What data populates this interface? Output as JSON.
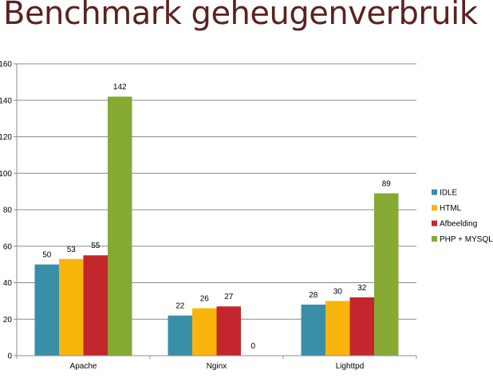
{
  "slide": {
    "title": "Benchmark geheugenverbruik"
  },
  "chart_data": {
    "type": "bar",
    "categories": [
      "Apache",
      "Nginx",
      "Lighttpd"
    ],
    "series": [
      {
        "name": "IDLE",
        "color": "#3a8fa8",
        "values": [
          50,
          22,
          28
        ]
      },
      {
        "name": "HTML",
        "color": "#f9b50c",
        "values": [
          53,
          26,
          30
        ]
      },
      {
        "name": "Afbeelding",
        "color": "#c3272d",
        "values": [
          55,
          27,
          32
        ]
      },
      {
        "name": "PHP + MYSQL",
        "color": "#86a934",
        "values": [
          142,
          0,
          89
        ]
      }
    ],
    "ylim": [
      0,
      160
    ],
    "yticks": [
      0,
      20,
      40,
      60,
      80,
      100,
      120,
      140,
      160
    ],
    "grid": true,
    "legend_position": "right",
    "data_labels": true
  }
}
